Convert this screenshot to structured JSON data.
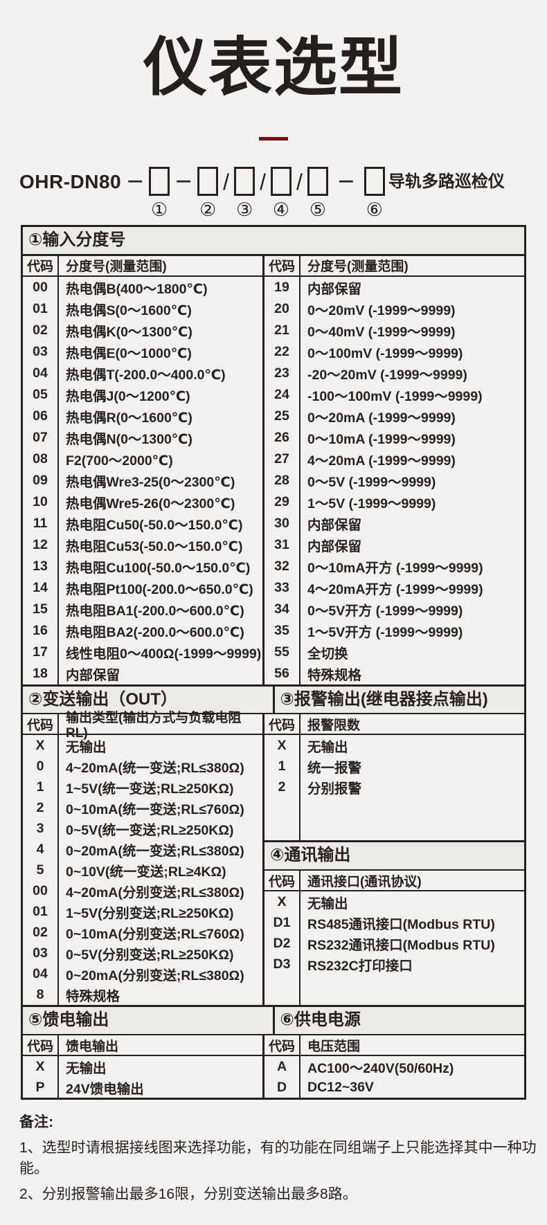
{
  "page": {
    "title": "仪表选型",
    "model_prefix": "OHR-DN80",
    "model_suffix": "导轨多路巡检仪",
    "separators": [
      "－",
      "－",
      "/",
      "/",
      "/",
      "－"
    ],
    "position_labels": [
      "①",
      "②",
      "③",
      "④",
      "⑤",
      "⑥"
    ]
  },
  "colors": {
    "accent": "#7a0d10",
    "text": "#262220"
  },
  "sections": {
    "s1": {
      "title": "①输入分度号",
      "col_headers_left": [
        "代码",
        "分度号(测量范围)"
      ],
      "col_headers_right": [
        "代码",
        "分度号(测量范围)"
      ],
      "rows_left": [
        [
          "00",
          "热电偶B(400～1800℃)"
        ],
        [
          "01",
          "热电偶S(0～1600℃)"
        ],
        [
          "02",
          "热电偶K(0～1300℃)"
        ],
        [
          "03",
          "热电偶E(0～1000℃)"
        ],
        [
          "04",
          "热电偶T(-200.0～400.0℃)"
        ],
        [
          "05",
          "热电偶J(0～1200℃)"
        ],
        [
          "06",
          "热电偶R(0～1600℃)"
        ],
        [
          "07",
          "热电偶N(0～1300℃)"
        ],
        [
          "08",
          "F2(700～2000℃)"
        ],
        [
          "09",
          "热电偶Wre3-25(0～2300℃)"
        ],
        [
          "10",
          "热电偶Wre5-26(0～2300℃)"
        ],
        [
          "11",
          "热电阻Cu50(-50.0～150.0℃)"
        ],
        [
          "12",
          "热电阻Cu53(-50.0～150.0℃)"
        ],
        [
          "13",
          "热电阻Cu100(-50.0～150.0℃)"
        ],
        [
          "14",
          "热电阻Pt100(-200.0～650.0℃)"
        ],
        [
          "15",
          "热电阻BA1(-200.0～600.0℃)"
        ],
        [
          "16",
          "热电阻BA2(-200.0～600.0℃)"
        ],
        [
          "17",
          "线性电阻0～400Ω(-1999～9999)"
        ],
        [
          "18",
          "内部保留"
        ]
      ],
      "rows_right": [
        [
          "19",
          "内部保留"
        ],
        [
          "20",
          "0～20mV (-1999～9999)"
        ],
        [
          "21",
          "0～40mV (-1999～9999)"
        ],
        [
          "22",
          "0～100mV (-1999～9999)"
        ],
        [
          "23",
          "-20～20mV (-1999～9999)"
        ],
        [
          "24",
          "-100～100mV (-1999～9999)"
        ],
        [
          "25",
          "0～20mA (-1999～9999)"
        ],
        [
          "26",
          "0～10mA (-1999～9999)"
        ],
        [
          "27",
          "4～20mA (-1999～9999)"
        ],
        [
          "28",
          "0～5V (-1999～9999)"
        ],
        [
          "29",
          "1～5V (-1999～9999)"
        ],
        [
          "30",
          "内部保留"
        ],
        [
          "31",
          "内部保留"
        ],
        [
          "32",
          "0～10mA开方 (-1999～9999)"
        ],
        [
          "33",
          "4～20mA开方 (-1999～9999)"
        ],
        [
          "34",
          "0～5V开方 (-1999～9999)"
        ],
        [
          "35",
          "1～5V开方 (-1999～9999)"
        ],
        [
          "55",
          "全切换"
        ],
        [
          "56",
          "特殊规格"
        ]
      ]
    },
    "s2": {
      "title": "②变送输出（OUT）",
      "col_headers": [
        "代码",
        "输出类型(输出方式与负载电阻RL)"
      ],
      "rows": [
        [
          "X",
          "无输出"
        ],
        [
          "0",
          "4~20mA(统一变送;RL≤380Ω)"
        ],
        [
          "1",
          "1~5V(统一变送;RL≥250KΩ)"
        ],
        [
          "2",
          "0~10mA(统一变送;RL≤760Ω)"
        ],
        [
          "3",
          "0~5V(统一变送;RL≥250KΩ)"
        ],
        [
          "4",
          "0~20mA(统一变送;RL≤380Ω)"
        ],
        [
          "5",
          "0~10V(统一变送;RL≥4KΩ)"
        ],
        [
          "00",
          "4~20mA(分别变送;RL≤380Ω)"
        ],
        [
          "01",
          "1~5V(分别变送;RL≥250KΩ)"
        ],
        [
          "02",
          "0~10mA(分别变送;RL≤760Ω)"
        ],
        [
          "03",
          "0~5V(分别变送;RL≥250KΩ)"
        ],
        [
          "04",
          "0~20mA(分别变送;RL≤380Ω)"
        ],
        [
          "8",
          "特殊规格"
        ]
      ]
    },
    "s3": {
      "title": "③报警输出(继电器接点输出)",
      "col_headers": [
        "代码",
        "报警限数"
      ],
      "rows": [
        [
          "X",
          "无输出"
        ],
        [
          "1",
          "统一报警"
        ],
        [
          "2",
          "分别报警"
        ]
      ]
    },
    "s4": {
      "title": "④通讯输出",
      "col_headers": [
        "代码",
        "通讯接口(通讯协议)"
      ],
      "rows": [
        [
          "X",
          "无输出"
        ],
        [
          "D1",
          "RS485通讯接口(Modbus RTU)"
        ],
        [
          "D2",
          "RS232通讯接口(Modbus RTU)"
        ],
        [
          "D3",
          "RS232C打印接口"
        ]
      ]
    },
    "s5": {
      "title": "⑤馈电输出",
      "col_headers": [
        "代码",
        "馈电输出"
      ],
      "rows": [
        [
          "X",
          "无输出"
        ],
        [
          "P",
          "24V馈电输出"
        ]
      ]
    },
    "s6": {
      "title": "⑥供电电源",
      "col_headers": [
        "代码",
        "电压范围"
      ],
      "rows": [
        [
          "A",
          "AC100～240V(50/60Hz)"
        ],
        [
          "D",
          "DC12~36V"
        ]
      ]
    }
  },
  "notes": {
    "label": "备注:",
    "items": [
      "1、选型时请根据接线图来选择功能，有的功能在同组端子上只能选择其中一种功能。",
      "2、分别报警输出最多16限，分别变送输出最多8路。"
    ]
  }
}
